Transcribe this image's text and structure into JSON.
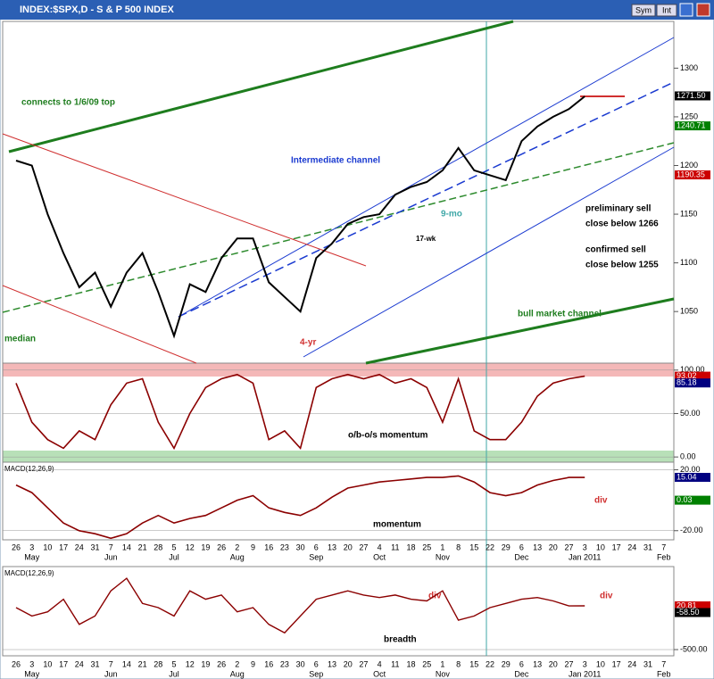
{
  "window": {
    "title": "INDEX:$SPX,D - S & P 500 INDEX",
    "buttons": [
      "Sym",
      "Int"
    ]
  },
  "chart_data": [
    {
      "type": "line",
      "color": "#000000",
      "categories": [
        "26",
        "3",
        "10",
        "17",
        "24",
        "31",
        "7",
        "14",
        "21",
        "28",
        "5",
        "12",
        "19",
        "26",
        "2",
        "9",
        "16",
        "23",
        "30",
        "6",
        "13",
        "20",
        "27",
        "4",
        "11",
        "18",
        "25",
        "1",
        "8",
        "15",
        "22",
        "29",
        "6",
        "13",
        "20",
        "27",
        "3",
        "10",
        "17",
        "24",
        "31",
        "7"
      ],
      "values": [
        1205,
        1200,
        1150,
        1110,
        1075,
        1090,
        1055,
        1090,
        1110,
        1070,
        1025,
        1078,
        1070,
        1105,
        1125,
        1125,
        1080,
        1065,
        1050,
        1105,
        1120,
        1140,
        1147,
        1150,
        1170,
        1178,
        1183,
        1195,
        1218,
        1195,
        1190,
        1185,
        1225,
        1240,
        1250,
        1258,
        1271,
        null,
        null,
        null,
        null,
        null
      ],
      "ylim": [
        997,
        1348
      ],
      "yticks": [
        1050,
        1100,
        1150,
        1200,
        1250,
        1300
      ],
      "last_labels": [
        {
          "value": 1271.5,
          "label": "1271.50",
          "color": "#000000"
        },
        {
          "value": 1240.71,
          "label": "1240.71",
          "color": "#008000"
        },
        {
          "value": 1190.35,
          "label": "1190.35",
          "color": "#cc0000"
        }
      ],
      "annotations": [
        "connects to 1/6/09 top",
        "Intermediate channel",
        "preliminary sell",
        "close below 1266",
        "confirmed sell",
        "close below 1255",
        "9-mo",
        "17-wk",
        "bull market channel",
        "median",
        "4-yr"
      ]
    },
    {
      "type": "line",
      "color": "#8b0000",
      "categories": [
        "26",
        "3",
        "10",
        "17",
        "24",
        "31",
        "7",
        "14",
        "21",
        "28",
        "5",
        "12",
        "19",
        "26",
        "2",
        "9",
        "16",
        "23",
        "30",
        "6",
        "13",
        "20",
        "27",
        "4",
        "11",
        "18",
        "25",
        "1",
        "8",
        "15",
        "22",
        "29",
        "6",
        "13",
        "20",
        "27",
        "3",
        "10",
        "17",
        "24",
        "31",
        "7"
      ],
      "values": [
        85,
        40,
        20,
        10,
        30,
        20,
        60,
        85,
        90,
        40,
        10,
        50,
        80,
        90,
        95,
        85,
        20,
        30,
        10,
        80,
        90,
        95,
        90,
        95,
        85,
        90,
        80,
        40,
        90,
        30,
        20,
        20,
        40,
        70,
        85,
        90,
        93,
        null,
        null,
        null,
        null,
        null
      ],
      "ylim": [
        -6,
        108
      ],
      "yticks": [
        {
          "value": 0,
          "label": "0.00"
        },
        {
          "value": 50,
          "label": "50.00"
        },
        {
          "value": 100,
          "label": "100.00"
        }
      ],
      "last_labels": [
        {
          "value": 93.02,
          "label": "93.02",
          "color": "#cc0000"
        },
        {
          "value": 85.18,
          "label": "85.18",
          "color": "#000080"
        }
      ],
      "annotations": [
        "o/b-o/s momentum"
      ]
    },
    {
      "type": "line",
      "color": "#8b0000",
      "title": "MACD(12,26,9)",
      "categories": [
        "26",
        "3",
        "10",
        "17",
        "24",
        "31",
        "7",
        "14",
        "21",
        "28",
        "5",
        "12",
        "19",
        "26",
        "2",
        "9",
        "16",
        "23",
        "30",
        "6",
        "13",
        "20",
        "27",
        "4",
        "11",
        "18",
        "25",
        "1",
        "8",
        "15",
        "22",
        "29",
        "6",
        "13",
        "20",
        "27",
        "3",
        "10",
        "17",
        "24",
        "31",
        "7"
      ],
      "month_row": [
        null,
        "May",
        null,
        null,
        null,
        null,
        "Jun",
        null,
        null,
        null,
        "Jul",
        null,
        null,
        null,
        "Aug",
        null,
        null,
        null,
        null,
        "Sep",
        null,
        null,
        null,
        "Oct",
        null,
        null,
        null,
        "Nov",
        null,
        null,
        null,
        null,
        "Dec",
        null,
        null,
        null,
        "Jan 2011",
        null,
        null,
        null,
        null,
        "Feb"
      ],
      "values": [
        10,
        5,
        -5,
        -15,
        -20,
        -22,
        -25,
        -22,
        -15,
        -10,
        -15,
        -12,
        -10,
        -5,
        0,
        3,
        -5,
        -8,
        -10,
        -5,
        2,
        8,
        10,
        12,
        13,
        14,
        15,
        15,
        16,
        12,
        5,
        3,
        5,
        10,
        13,
        15,
        15,
        null,
        null,
        null,
        null,
        null
      ],
      "ylim": [
        -26,
        25
      ],
      "yticks": [
        {
          "value": 20,
          "label": "20.00"
        },
        {
          "value": -20,
          "label": "-20.00"
        }
      ],
      "last_labels": [
        {
          "value": 15.04,
          "label": "15.04",
          "color": "#000080"
        },
        {
          "value": 0.03,
          "label": "0.03",
          "color": "#008000"
        }
      ],
      "annotations": [
        "momentum",
        "div"
      ]
    },
    {
      "type": "line",
      "color": "#8b0000",
      "title": "MACD(12,26,9)",
      "categories": [
        "26",
        "3",
        "10",
        "17",
        "24",
        "31",
        "7",
        "14",
        "21",
        "28",
        "5",
        "12",
        "19",
        "26",
        "2",
        "9",
        "16",
        "23",
        "30",
        "6",
        "13",
        "20",
        "27",
        "4",
        "11",
        "18",
        "25",
        "1",
        "8",
        "15",
        "22",
        "29",
        "6",
        "13",
        "20",
        "27",
        "3",
        "10",
        "17",
        "24",
        "31",
        "7"
      ],
      "month_row": [
        null,
        "May",
        null,
        null,
        null,
        null,
        "Jun",
        null,
        null,
        null,
        "Jul",
        null,
        null,
        null,
        "Aug",
        null,
        null,
        null,
        null,
        "Sep",
        null,
        null,
        null,
        "Oct",
        null,
        null,
        null,
        "Nov",
        null,
        null,
        null,
        null,
        "Dec",
        null,
        null,
        null,
        "Jan 2011",
        null,
        null,
        null,
        null,
        "Feb"
      ],
      "values": [
        0,
        -100,
        -50,
        100,
        -200,
        -100,
        200,
        350,
        50,
        0,
        -100,
        200,
        100,
        150,
        -50,
        0,
        -200,
        -300,
        -100,
        100,
        150,
        200,
        150,
        120,
        150,
        100,
        80,
        200,
        -150,
        -100,
        0,
        50,
        100,
        120,
        80,
        20,
        21,
        null,
        null,
        null,
        null,
        null
      ],
      "ylim": [
        -574,
        489
      ],
      "yticks": [
        {
          "value": -500,
          "label": "-500.00"
        }
      ],
      "last_labels": [
        {
          "value": 20.81,
          "label": "20.81",
          "color": "#cc0000"
        },
        {
          "value": -58.5,
          "label": "-58.50",
          "color": "#000000"
        }
      ],
      "annotations": [
        "breadth",
        "div",
        "div"
      ]
    }
  ]
}
